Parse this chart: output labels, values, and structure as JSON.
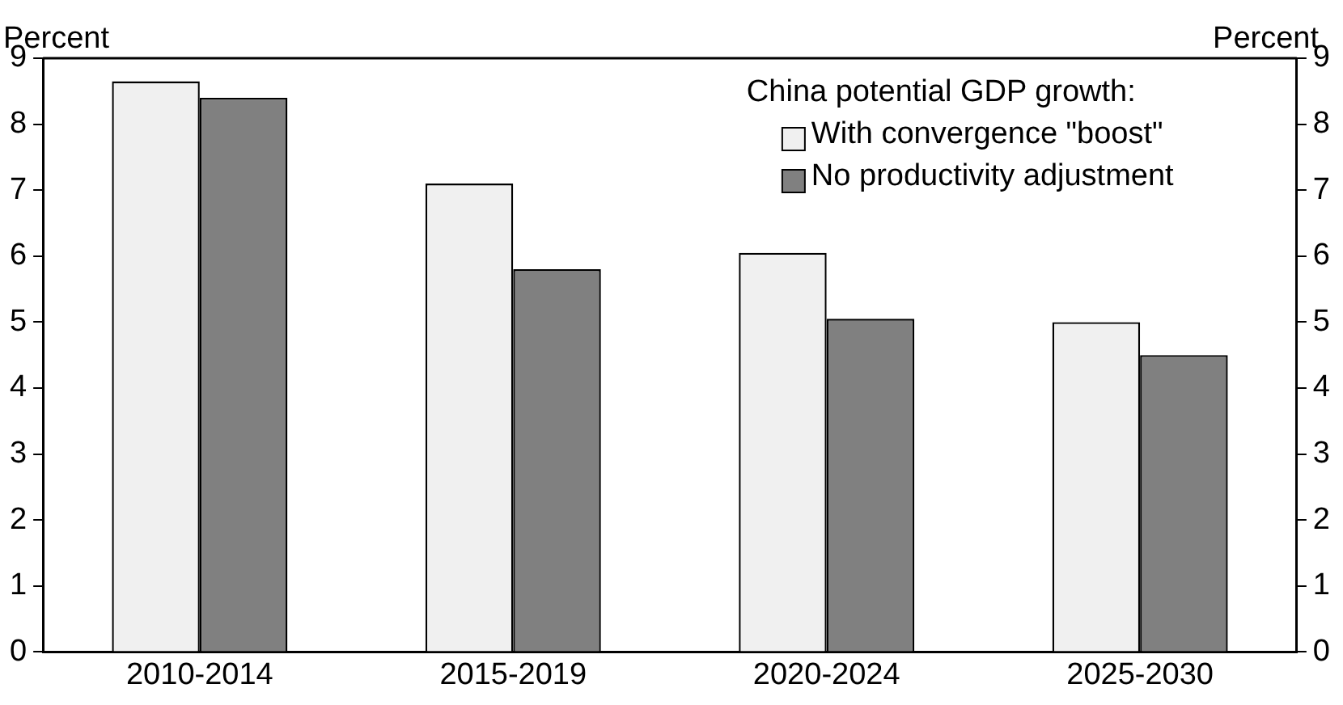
{
  "chart_data": {
    "type": "bar",
    "ylabel": "Percent",
    "y2label": "Percent",
    "legend_title": "China potential GDP growth:",
    "categories": [
      "2010-2014",
      "2015-2019",
      "2020-2024",
      "2025-2030"
    ],
    "series": [
      {
        "name": "With convergence \"boost\"",
        "color": "#f0f0f0",
        "values": [
          8.65,
          7.1,
          6.05,
          5.0
        ]
      },
      {
        "name": "No productivity adjustment",
        "color": "#808080",
        "values": [
          8.4,
          5.8,
          5.05,
          4.5
        ]
      }
    ],
    "ylim": [
      0,
      9
    ],
    "yticks": [
      0,
      1,
      2,
      3,
      4,
      5,
      6,
      7,
      8,
      9
    ],
    "y2lim": [
      0,
      9
    ],
    "y2ticks": [
      0,
      1,
      2,
      3,
      4,
      5,
      6,
      7,
      8,
      9
    ],
    "grid": false,
    "legend": "top right"
  }
}
